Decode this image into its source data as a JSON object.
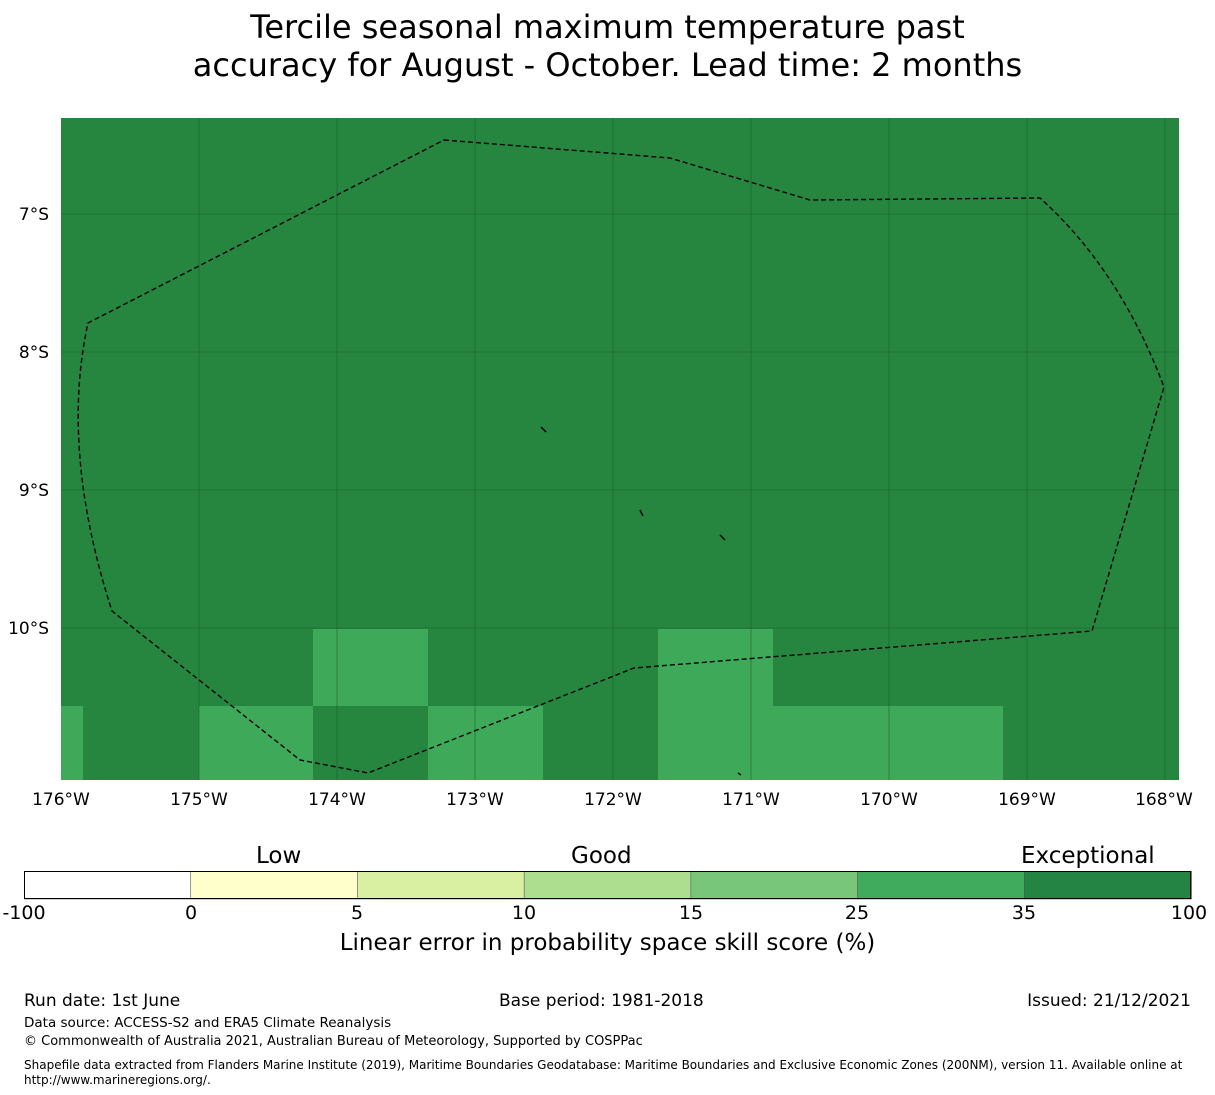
{
  "title": {
    "line1": "Tercile seasonal maximum temperature past",
    "line2": "accuracy for August - October. Lead time: 2 months"
  },
  "map": {
    "lon_labels": [
      "176°W",
      "175°W",
      "174°W",
      "173°W",
      "172°W",
      "171°W",
      "170°W",
      "169°W",
      "168°W"
    ],
    "lat_labels": [
      "7°S",
      "8°S",
      "9°S",
      "10°S"
    ],
    "colors": {
      "exceptional": "#26863f",
      "bin_25_35": "#3fa95a",
      "land": "#000000"
    }
  },
  "colorbar": {
    "category_labels": {
      "low": "Low",
      "good": "Good",
      "exceptional": "Exceptional"
    },
    "ticks": [
      "-100",
      "0",
      "5",
      "10",
      "15",
      "25",
      "35",
      "100"
    ],
    "bins": [
      "#ffffff",
      "#ffffcc",
      "#d9f0a3",
      "#addd8e",
      "#78c679",
      "#41ab5d",
      "#238443"
    ],
    "title": "Linear error in probability space skill score (%)"
  },
  "footer": {
    "run_date": "Run date: 1st June",
    "base_period": "Base period: 1981-2018",
    "issued": "Issued: 21/12/2021",
    "data_source": "Data source: ACCESS-S2 and ERA5 Climate Reanalysis",
    "copyright": "© Commonwealth of Australia 2021, Australian Bureau of Meteorology, Supported by COSPPac",
    "shapefile_line1": "Shapefile data extracted from Flanders Marine Institute (2019), Maritime Boundaries Geodatabase: Maritime Boundaries and Exclusive Economic Zones (200NM), version 11. Available online at",
    "shapefile_line2": "http://www.marineregions.org/."
  }
}
